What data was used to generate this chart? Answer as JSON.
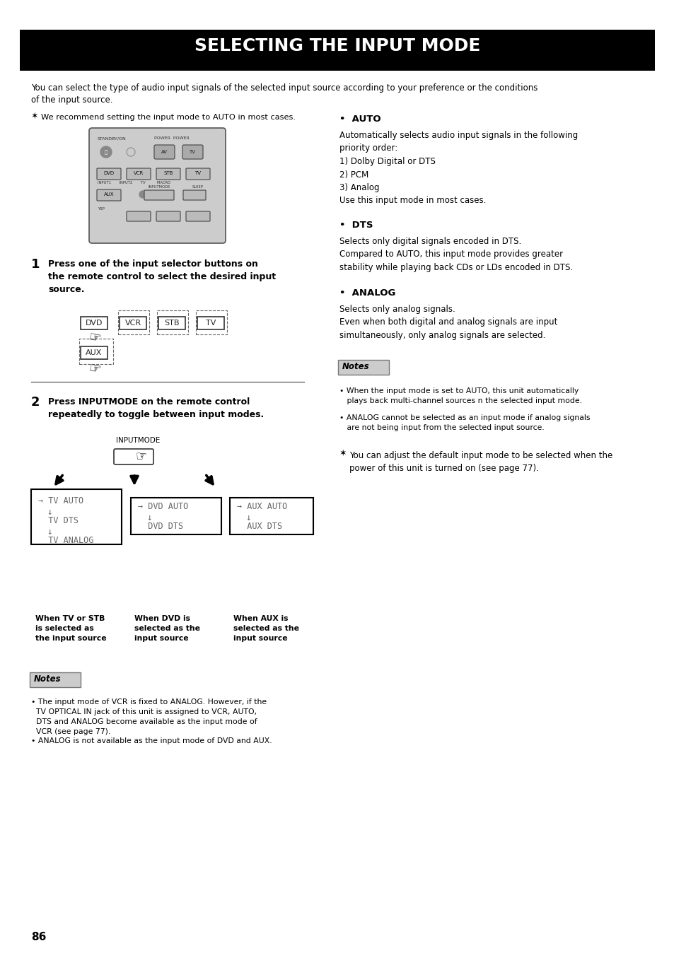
{
  "title": "SELECTING THE INPUT MODE",
  "title_bg": "#000000",
  "title_color": "#ffffff",
  "page_bg": "#ffffff",
  "page_number": "86",
  "intro_text": "You can select the type of audio input signals of the selected input source according to your preference or the conditions\nof the input source.",
  "tip_text1": "We recommend setting the input mode to AUTO in most cases.",
  "step1_num": "1",
  "step1_text": "Press one of the input selector buttons on\nthe remote control to select the desired input\nsource.",
  "step2_num": "2",
  "step2_text": "Press INPUTMODE on the remote control\nrepeatedly to toggle between input modes.",
  "auto_header": "•  AUTO",
  "auto_text": "Automatically selects audio input signals in the following\npriority order:\n1) Dolby Digital or DTS\n2) PCM\n3) Analog\nUse this input mode in most cases.",
  "dts_header": "•  DTS",
  "dts_text": "Selects only digital signals encoded in DTS.\nCompared to AUTO, this input mode provides greater\nstability while playing back CDs or LDs encoded in DTS.",
  "analog_header": "•  ANALOG",
  "analog_text": "Selects only analog signals.\nEven when both digital and analog signals are input\nsimultaneously, only analog signals are selected.",
  "notes1_items": [
    "• When the input mode is set to AUTO, this unit automatically\n   plays back multi-channel sources n the selected input mode.",
    "• ANALOG cannot be selected as an input mode if analog signals\n   are not being input from the selected input source."
  ],
  "tip_text2": "You can adjust the default input mode to be selected when the\npower of this unit is turned on (see page 77).",
  "when_tv_label": "When TV or STB\nis selected as\nthe input source",
  "when_dvd_label": "When DVD is\nselected as the\ninput source",
  "when_aux_label": "When AUX is\nselected as the\ninput source",
  "notes2_items": [
    "• The input mode of VCR is fixed to ANALOG. However, if the\n  TV OPTICAL IN jack of this unit is assigned to VCR, AUTO,\n  DTS and ANALOG become available as the input mode of\n  VCR (see page 77).",
    "• ANALOG is not available as the input mode of DVD and AUX."
  ]
}
